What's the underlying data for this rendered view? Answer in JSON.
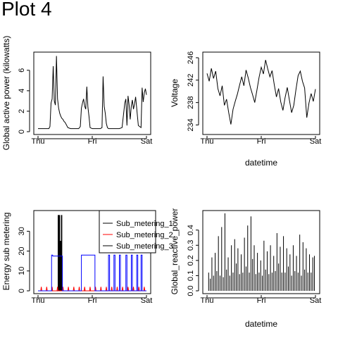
{
  "page_title": "Plot 4",
  "colors": {
    "black": "#000000",
    "red": "#ff0000",
    "blue": "#0000ff"
  },
  "chart_data": [
    {
      "type": "line",
      "ylabel": "Global active power (kilowatts)",
      "xlabel": "",
      "x_ticks": [
        "Thu",
        "Fri",
        "Sat"
      ],
      "y_ticks": [
        "0",
        "2",
        "4",
        "6"
      ],
      "ylim": [
        0,
        7.5
      ],
      "x": [
        0.0,
        0.05,
        0.1,
        0.15,
        0.2,
        0.22,
        0.24,
        0.26,
        0.28,
        0.3,
        0.32,
        0.34,
        0.36,
        0.38,
        0.4,
        0.42,
        0.44,
        0.46,
        0.48,
        0.5,
        0.55,
        0.6,
        0.65,
        0.7,
        0.75,
        0.78,
        0.8,
        0.82,
        0.84,
        0.86,
        0.88,
        0.9,
        0.92,
        0.94,
        0.96,
        1.0,
        1.05,
        1.1,
        1.15,
        1.18,
        1.2,
        1.22,
        1.24,
        1.26,
        1.28,
        1.3,
        1.35,
        1.4,
        1.45,
        1.5,
        1.55,
        1.6,
        1.62,
        1.64,
        1.66,
        1.68,
        1.7,
        1.72,
        1.74,
        1.76,
        1.78,
        1.8,
        1.85,
        1.9,
        1.92,
        1.94,
        1.96,
        1.98,
        2.0
      ],
      "series": [
        {
          "values": [
            0.3,
            0.3,
            0.3,
            0.3,
            0.3,
            0.5,
            2.8,
            3.2,
            6.4,
            3.0,
            2.6,
            7.4,
            3.2,
            2.3,
            1.8,
            1.5,
            1.3,
            1.2,
            1.0,
            0.9,
            0.4,
            0.3,
            0.3,
            0.3,
            0.3,
            0.5,
            2.3,
            2.8,
            3.2,
            2.5,
            2.2,
            4.4,
            2.4,
            1.5,
            0.4,
            0.3,
            0.3,
            0.3,
            0.3,
            0.4,
            5.4,
            2.5,
            1.8,
            0.8,
            0.4,
            0.3,
            0.3,
            0.3,
            0.3,
            0.3,
            0.4,
            2.8,
            3.2,
            0.6,
            3.5,
            2.6,
            1.2,
            2.5,
            3.1,
            2.2,
            2.7,
            3.4,
            0.6,
            0.4,
            4.3,
            2.9,
            3.8,
            4.2,
            3.6
          ]
        }
      ]
    },
    {
      "type": "line",
      "ylabel": "Voltage",
      "xlabel": "datetime",
      "x_ticks": [
        "Thu",
        "Fri",
        "Sat"
      ],
      "y_ticks": [
        "234",
        "238",
        "242",
        "246"
      ],
      "ylim": [
        232.8,
        246.5
      ],
      "x": [
        0.0,
        0.04,
        0.08,
        0.12,
        0.16,
        0.2,
        0.24,
        0.28,
        0.32,
        0.36,
        0.4,
        0.44,
        0.48,
        0.52,
        0.56,
        0.6,
        0.64,
        0.68,
        0.72,
        0.76,
        0.8,
        0.84,
        0.88,
        0.92,
        0.96,
        1.0,
        1.04,
        1.08,
        1.12,
        1.16,
        1.2,
        1.24,
        1.28,
        1.32,
        1.36,
        1.4,
        1.44,
        1.48,
        1.52,
        1.56,
        1.6,
        1.64,
        1.68,
        1.72,
        1.76,
        1.8,
        1.84,
        1.88,
        1.92,
        1.96,
        2.0
      ],
      "series": [
        {
          "values": [
            243.2,
            241.8,
            244.1,
            242.3,
            243.6,
            240.5,
            239.2,
            241.0,
            237.5,
            238.6,
            236.2,
            234.1,
            236.8,
            238.2,
            239.5,
            241.1,
            242.6,
            241.0,
            243.8,
            242.4,
            240.7,
            239.4,
            238.0,
            240.2,
            242.5,
            244.3,
            243.1,
            245.6,
            244.0,
            242.6,
            243.7,
            241.2,
            239.0,
            240.5,
            238.1,
            236.6,
            238.9,
            240.7,
            238.4,
            236.2,
            237.5,
            240.3,
            242.8,
            243.6,
            241.8,
            240.6,
            235.3,
            237.9,
            239.6,
            238.2,
            240.4
          ]
        }
      ]
    },
    {
      "type": "line",
      "ylabel": "Energy sub metering",
      "xlabel": "",
      "x_ticks": [
        "Thu",
        "Fri",
        "Sat"
      ],
      "y_ticks": [
        "0",
        "10",
        "20",
        "30"
      ],
      "ylim": [
        0,
        39
      ],
      "legend_position": "top-right",
      "legend": [
        "Sub_metering_1",
        "Sub_metering_2",
        "Sub_metering_3"
      ],
      "series": [
        {
          "name": "Sub_metering_1",
          "color": "#000000",
          "x": [
            0.0,
            0.37,
            0.37,
            0.38,
            0.38,
            0.39,
            0.39,
            0.4,
            0.4,
            0.41,
            0.41,
            0.42,
            0.42,
            0.43,
            0.43,
            0.44,
            0.44,
            0.45,
            0.45,
            2.0
          ],
          "values": [
            0,
            0,
            38,
            38,
            0,
            0,
            38,
            38,
            0,
            0,
            25,
            25,
            0,
            0,
            38,
            38,
            0,
            0,
            0,
            0
          ]
        },
        {
          "name": "Sub_metering_2",
          "color": "#ff0000",
          "x": [
            0.0,
            0.05,
            0.06,
            0.07,
            0.15,
            0.16,
            0.17,
            0.25,
            0.26,
            0.27,
            0.35,
            0.36,
            0.37,
            0.45,
            0.46,
            0.47,
            0.55,
            0.56,
            0.57,
            0.65,
            0.66,
            0.67,
            0.75,
            0.76,
            0.77,
            0.85,
            0.86,
            0.87,
            0.95,
            0.96,
            0.97,
            1.05,
            1.06,
            1.07,
            1.15,
            1.16,
            1.17,
            1.25,
            1.26,
            1.27,
            1.35,
            1.36,
            1.37,
            1.45,
            1.46,
            1.47,
            1.55,
            1.56,
            1.57,
            1.65,
            1.66,
            1.67,
            1.75,
            1.76,
            1.77,
            1.85,
            1.86,
            1.87,
            1.95,
            1.96,
            1.97,
            2.0
          ],
          "values": [
            0,
            0,
            2,
            0,
            0,
            2,
            0,
            0,
            2,
            0,
            0,
            2,
            0,
            0,
            2,
            0,
            0,
            2,
            0,
            0,
            2,
            0,
            0,
            2,
            0,
            0,
            2,
            0,
            0,
            2,
            0,
            0,
            2,
            0,
            0,
            2,
            0,
            0,
            2,
            0,
            0,
            2,
            0,
            0,
            2,
            0,
            0,
            2,
            0,
            0,
            2,
            0,
            0,
            2,
            0,
            0,
            2,
            0,
            0,
            2,
            0,
            0
          ]
        },
        {
          "name": "Sub_metering_3",
          "color": "#0000ff",
          "x": [
            0.0,
            0.25,
            0.25,
            0.27,
            0.27,
            0.45,
            0.45,
            0.8,
            0.8,
            1.05,
            1.05,
            1.3,
            1.3,
            1.32,
            1.32,
            1.4,
            1.4,
            1.42,
            1.42,
            1.5,
            1.5,
            1.52,
            1.52,
            1.62,
            1.62,
            1.64,
            1.64,
            1.72,
            1.72,
            1.74,
            1.74,
            1.82,
            1.82,
            1.84,
            1.84,
            1.9,
            1.9,
            1.92,
            1.92,
            2.0
          ],
          "values": [
            0,
            0,
            18,
            18,
            17.5,
            17.5,
            0,
            0,
            18,
            18,
            0,
            0,
            18,
            18,
            0,
            0,
            18,
            18,
            0,
            0,
            18,
            18,
            0,
            0,
            18,
            18,
            0,
            0,
            18,
            18,
            0,
            0,
            18,
            18,
            0,
            0,
            18,
            18,
            0,
            0
          ]
        }
      ]
    },
    {
      "type": "bar",
      "ylabel": "Global_reactive_power",
      "xlabel": "datetime",
      "x_ticks": [
        "Thu",
        "Fri",
        "Sat"
      ],
      "y_ticks": [
        "0.0",
        "0.1",
        "0.2",
        "0.3",
        "0.4"
      ],
      "ylim": [
        0,
        0.51
      ],
      "x": [
        0.03,
        0.06,
        0.09,
        0.12,
        0.15,
        0.18,
        0.21,
        0.24,
        0.27,
        0.3,
        0.33,
        0.36,
        0.39,
        0.42,
        0.45,
        0.48,
        0.51,
        0.54,
        0.57,
        0.6,
        0.63,
        0.66,
        0.69,
        0.72,
        0.75,
        0.78,
        0.81,
        0.84,
        0.87,
        0.9,
        0.93,
        0.96,
        0.99,
        1.02,
        1.05,
        1.08,
        1.11,
        1.14,
        1.17,
        1.2,
        1.23,
        1.26,
        1.29,
        1.32,
        1.35,
        1.38,
        1.41,
        1.44,
        1.47,
        1.5,
        1.53,
        1.56,
        1.59,
        1.62,
        1.65,
        1.68,
        1.71,
        1.74,
        1.77,
        1.8,
        1.83,
        1.86,
        1.89,
        1.92,
        1.95,
        1.98
      ],
      "values": [
        0.12,
        0.08,
        0.22,
        0.1,
        0.25,
        0.13,
        0.36,
        0.1,
        0.42,
        0.09,
        0.51,
        0.14,
        0.22,
        0.1,
        0.3,
        0.12,
        0.34,
        0.18,
        0.28,
        0.11,
        0.24,
        0.12,
        0.35,
        0.16,
        0.43,
        0.12,
        0.49,
        0.21,
        0.3,
        0.11,
        0.25,
        0.12,
        0.2,
        0.1,
        0.33,
        0.14,
        0.26,
        0.11,
        0.3,
        0.12,
        0.23,
        0.13,
        0.38,
        0.18,
        0.29,
        0.12,
        0.36,
        0.12,
        0.28,
        0.16,
        0.24,
        0.1,
        0.3,
        0.13,
        0.23,
        0.12,
        0.37,
        0.1,
        0.32,
        0.14,
        0.28,
        0.12,
        0.24,
        0.12,
        0.22,
        0.23
      ]
    }
  ]
}
